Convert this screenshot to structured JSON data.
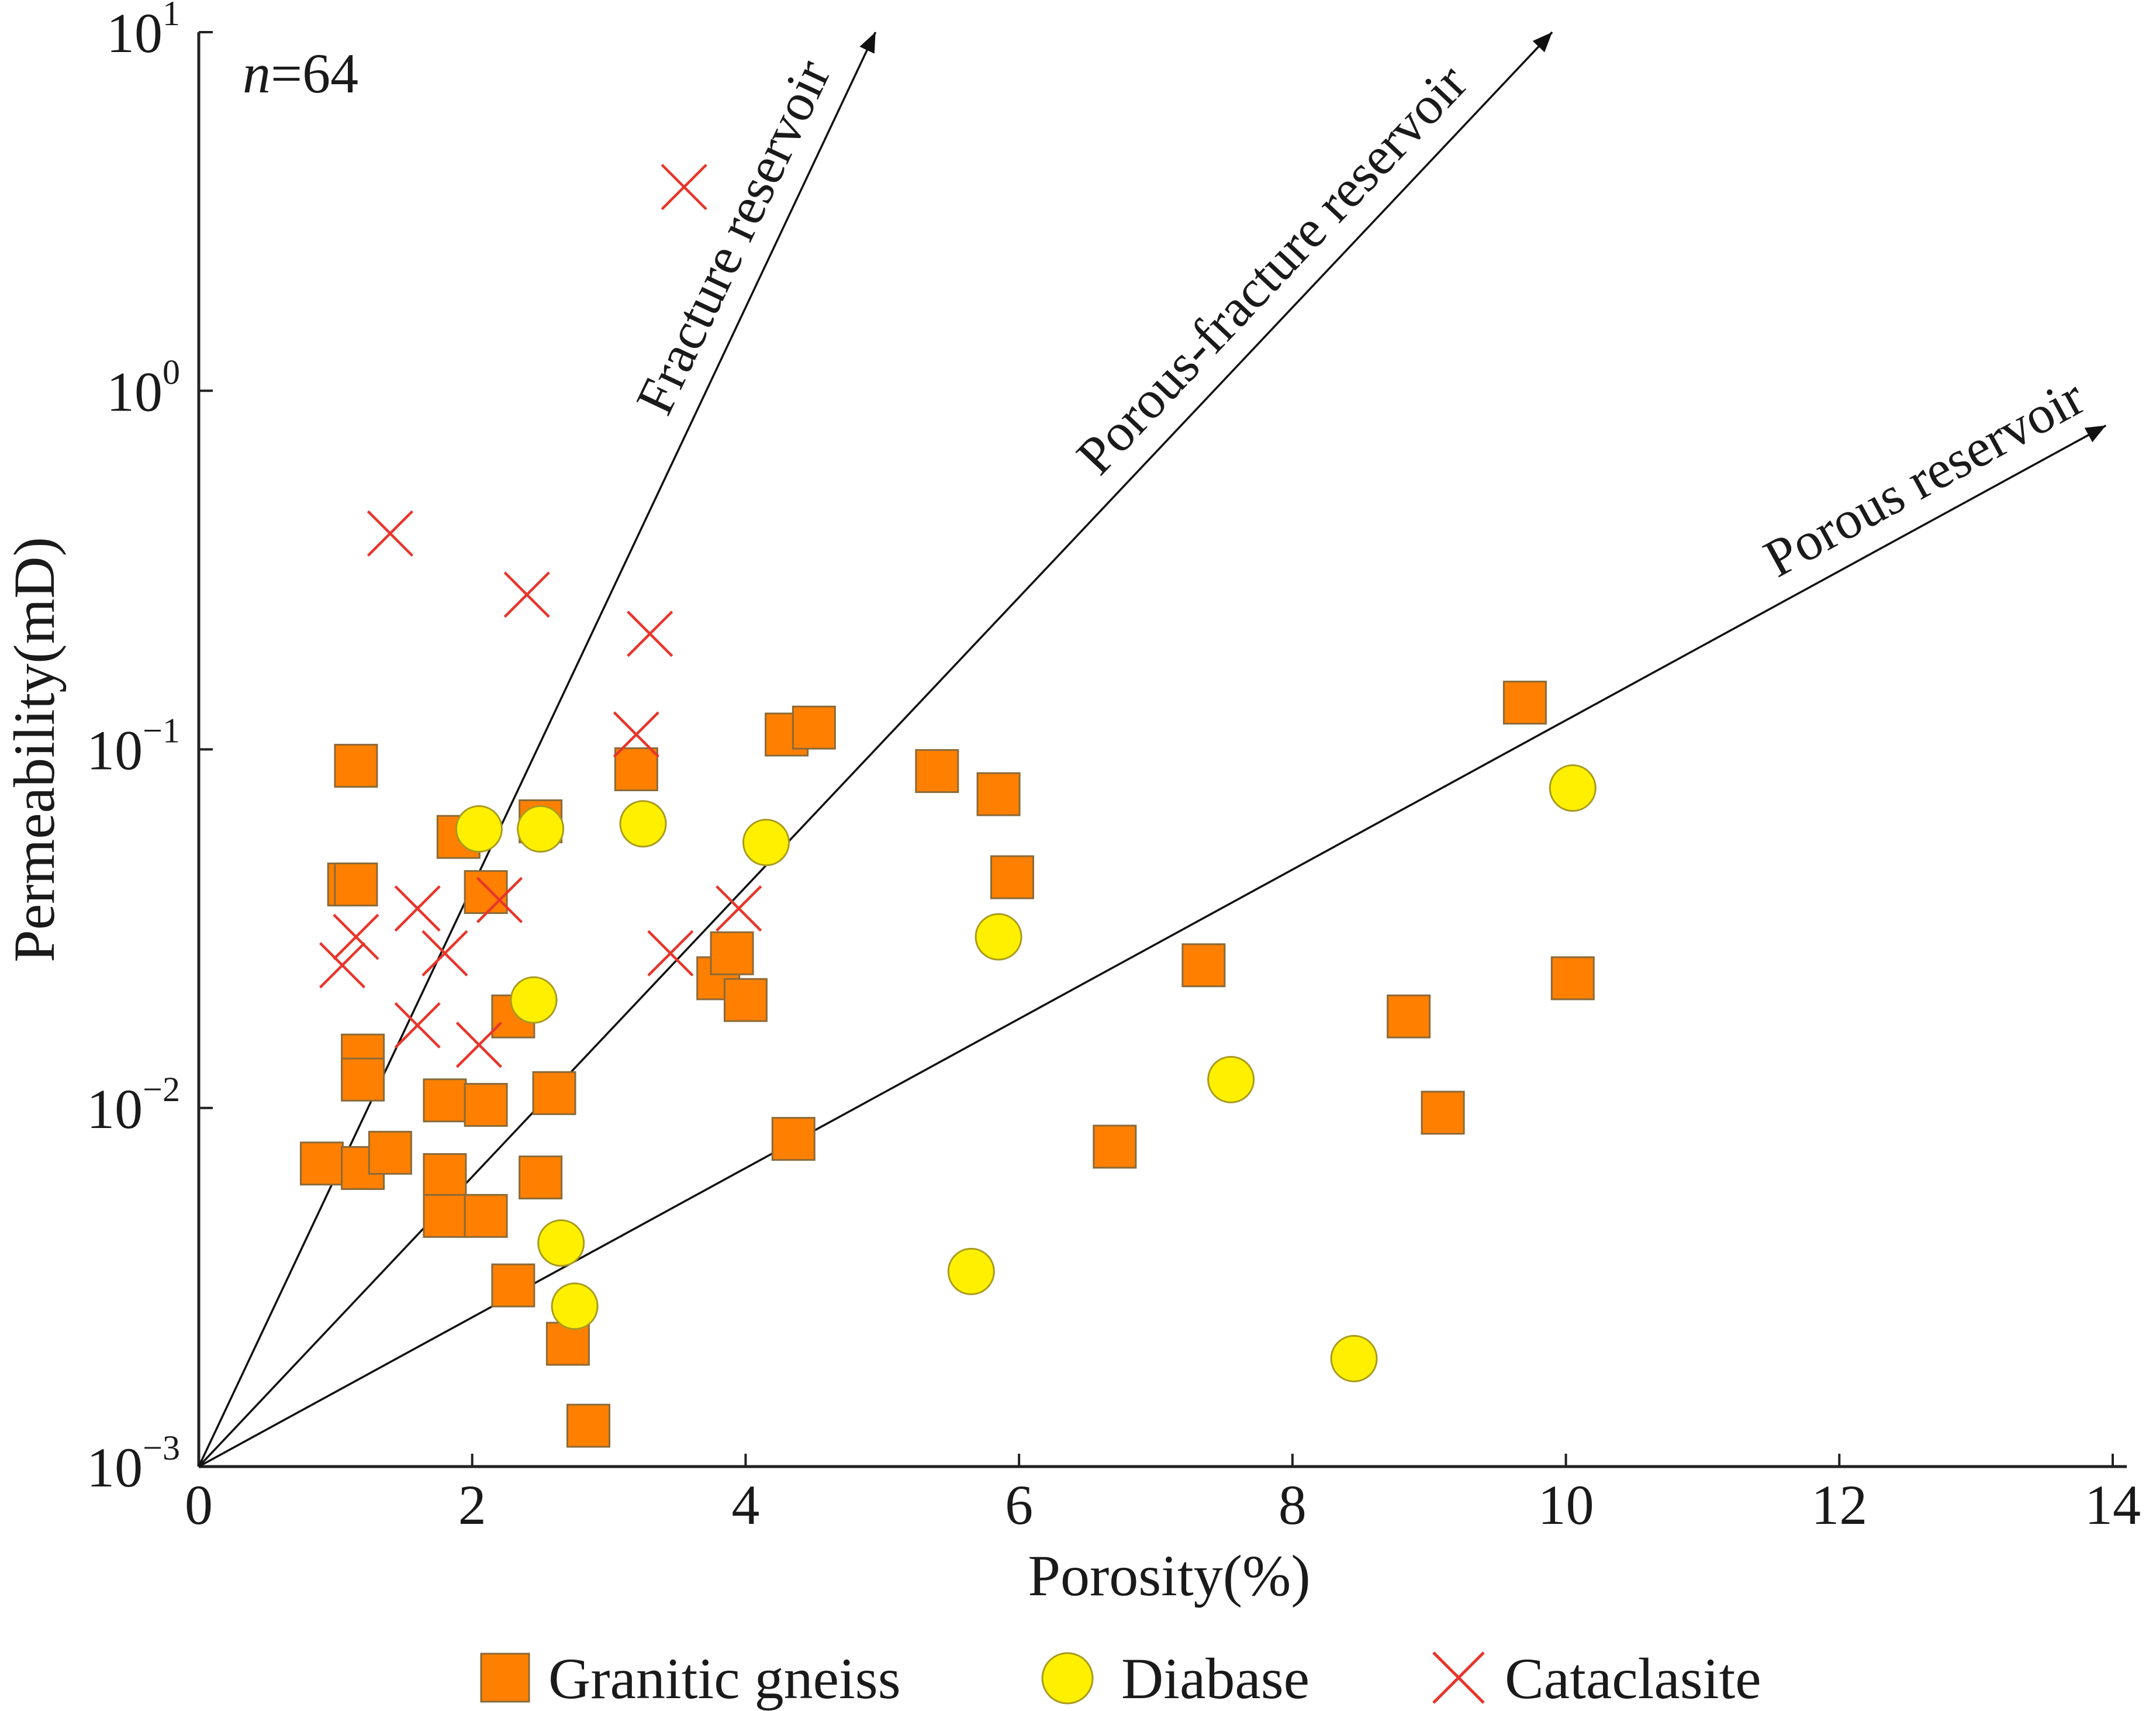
{
  "chart_data": {
    "type": "scatter",
    "title": "",
    "annotation_n_italic": "n",
    "annotation_n_value": "=64",
    "xlabel": "Porosity(%)",
    "ylabel": "Permeability(mD)",
    "xlim": [
      0,
      14
    ],
    "ylim_log10": [
      -3,
      1
    ],
    "y_scale": "log",
    "x_ticks": [
      0,
      2,
      4,
      6,
      8,
      10,
      12,
      14
    ],
    "x_tick_labels": [
      "0",
      "2",
      "4",
      "6",
      "8",
      "10",
      "12",
      "14"
    ],
    "y_ticks": [
      {
        "base": "10",
        "exp": "1",
        "value": 10
      },
      {
        "base": "10",
        "exp": "0",
        "value": 1
      },
      {
        "base": "10",
        "exp": "−1",
        "value": 0.1
      },
      {
        "base": "10",
        "exp": "−2",
        "value": 0.01
      },
      {
        "base": "10",
        "exp": "−3",
        "value": 0.001
      }
    ],
    "reference_lines": [
      {
        "label": "Fracture reservoir",
        "from": [
          0,
          0.001
        ],
        "to": [
          4.95,
          10
        ]
      },
      {
        "label": "Porous-fracture reservoir",
        "from": [
          0,
          0.001
        ],
        "to": [
          9.9,
          10
        ]
      },
      {
        "label": "Porous reservoir",
        "from": [
          0,
          0.001
        ],
        "to": [
          13.95,
          0.8
        ]
      }
    ],
    "legend_position": "bottom-center",
    "series": [
      {
        "name": "Granitic gneiss",
        "marker": "square",
        "color": "#FF8000",
        "edge": "#8a6a3a",
        "points": [
          [
            1.15,
            0.09
          ],
          [
            1.1,
            0.042
          ],
          [
            1.15,
            0.042
          ],
          [
            1.2,
            0.014
          ],
          [
            1.2,
            0.012
          ],
          [
            0.9,
            0.007
          ],
          [
            1.2,
            0.0068
          ],
          [
            1.4,
            0.0075
          ],
          [
            1.8,
            0.0105
          ],
          [
            2.1,
            0.0102
          ],
          [
            1.8,
            0.0065
          ],
          [
            1.8,
            0.005
          ],
          [
            2.1,
            0.005
          ],
          [
            2.3,
            0.0032
          ],
          [
            1.9,
            0.057
          ],
          [
            2.1,
            0.04
          ],
          [
            2.5,
            0.063
          ],
          [
            2.3,
            0.018
          ],
          [
            2.6,
            0.011
          ],
          [
            2.5,
            0.0064
          ],
          [
            2.7,
            0.0022
          ],
          [
            2.85,
            0.0013
          ],
          [
            3.2,
            0.088
          ],
          [
            3.8,
            0.023
          ],
          [
            3.9,
            0.027
          ],
          [
            4.0,
            0.02
          ],
          [
            4.3,
            0.11
          ],
          [
            4.5,
            0.115
          ],
          [
            4.35,
            0.0082
          ],
          [
            5.4,
            0.087
          ],
          [
            5.85,
            0.075
          ],
          [
            5.95,
            0.044
          ],
          [
            6.7,
            0.0078
          ],
          [
            7.35,
            0.025
          ],
          [
            8.85,
            0.018
          ],
          [
            9.1,
            0.0097
          ],
          [
            9.7,
            0.135
          ],
          [
            10.05,
            0.023
          ]
        ]
      },
      {
        "name": "Diabase",
        "marker": "circle",
        "color": "#FFF000",
        "edge": "#a89a20",
        "points": [
          [
            2.05,
            0.06
          ],
          [
            2.5,
            0.06
          ],
          [
            2.45,
            0.02
          ],
          [
            2.65,
            0.0042
          ],
          [
            2.75,
            0.0028
          ],
          [
            3.25,
            0.062
          ],
          [
            4.15,
            0.055
          ],
          [
            5.65,
            0.0035
          ],
          [
            5.85,
            0.03
          ],
          [
            7.55,
            0.012
          ],
          [
            8.45,
            0.002
          ],
          [
            10.05,
            0.078
          ]
        ]
      },
      {
        "name": "Cataclasite",
        "marker": "x",
        "color": "#E8352B",
        "points": [
          [
            3.55,
            3.7
          ],
          [
            1.4,
            0.4
          ],
          [
            2.4,
            0.27
          ],
          [
            3.3,
            0.21
          ],
          [
            3.2,
            0.11
          ],
          [
            1.6,
            0.036
          ],
          [
            2.2,
            0.038
          ],
          [
            1.15,
            0.03
          ],
          [
            1.05,
            0.025
          ],
          [
            1.8,
            0.027
          ],
          [
            1.6,
            0.017
          ],
          [
            2.05,
            0.015
          ],
          [
            3.45,
            0.027
          ],
          [
            3.95,
            0.036
          ]
        ]
      }
    ]
  }
}
